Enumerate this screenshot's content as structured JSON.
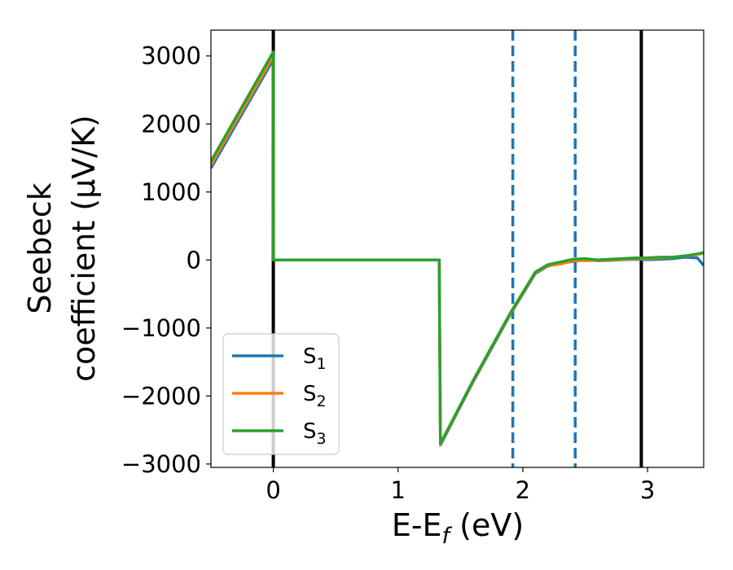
{
  "chart_data": {
    "type": "line",
    "xlabel": "E-E_f (eV)",
    "ylabel_line1": "Seebeck",
    "ylabel_line2": "coefficient  (μV/K)",
    "xlim": [
      -0.5,
      3.45
    ],
    "ylim": [
      -3050,
      3380
    ],
    "xticks": [
      {
        "value": 0,
        "label": "0"
      },
      {
        "value": 1,
        "label": "1"
      },
      {
        "value": 2,
        "label": "2"
      },
      {
        "value": 3,
        "label": "3"
      }
    ],
    "yticks": [
      {
        "value": 3000,
        "label": "3000"
      },
      {
        "value": 2000,
        "label": "2000"
      },
      {
        "value": 1000,
        "label": "1000"
      },
      {
        "value": 0,
        "label": "0"
      },
      {
        "value": -1000,
        "label": "−1000"
      },
      {
        "value": -2000,
        "label": "−2000"
      },
      {
        "value": -3000,
        "label": "−3000"
      }
    ],
    "vlines": [
      {
        "x": 0,
        "style": "solid",
        "color": "#000000"
      },
      {
        "x": 2.95,
        "style": "solid",
        "color": "#000000"
      },
      {
        "x": 1.92,
        "style": "dashed",
        "color": "#1f77b4"
      },
      {
        "x": 2.42,
        "style": "dashed",
        "color": "#1f77b4"
      }
    ],
    "legend_position": "lower-left",
    "series": [
      {
        "name": "S",
        "subscript": "1",
        "color": "#1f77b4",
        "x": [
          -0.5,
          0,
          0.001,
          1.33,
          1.335,
          1.34,
          1.6,
          1.9,
          2.1,
          2.2,
          2.3,
          2.4,
          2.5,
          2.6,
          2.7,
          2.8,
          2.9,
          3.0,
          3.1,
          3.2,
          3.3,
          3.4,
          3.45
        ],
        "y": [
          1350,
          2950,
          0,
          0,
          -1500,
          -2720,
          -1800,
          -800,
          -200,
          -90,
          -50,
          -20,
          0,
          -10,
          -5,
          5,
          10,
          5,
          10,
          20,
          40,
          30,
          -80
        ]
      },
      {
        "name": "S",
        "subscript": "2",
        "color": "#ff7f0e",
        "x": [
          -0.5,
          0,
          0.001,
          1.33,
          1.335,
          1.34,
          1.6,
          1.9,
          2.1,
          2.2,
          2.3,
          2.4,
          2.5,
          2.6,
          2.7,
          2.8,
          2.9,
          3.0,
          3.1,
          3.2,
          3.3,
          3.4,
          3.45
        ],
        "y": [
          1400,
          3000,
          0,
          0,
          -1500,
          -2710,
          -1790,
          -790,
          -190,
          -80,
          -60,
          -10,
          -10,
          -5,
          0,
          10,
          20,
          20,
          30,
          40,
          60,
          80,
          100
        ]
      },
      {
        "name": "S",
        "subscript": "3",
        "color": "#2ca02c",
        "x": [
          -0.5,
          0,
          0.001,
          1.33,
          1.335,
          1.34,
          1.6,
          1.9,
          2.1,
          2.2,
          2.3,
          2.4,
          2.5,
          2.6,
          2.7,
          2.8,
          2.9,
          3.0,
          3.1,
          3.2,
          3.3,
          3.4,
          3.45
        ],
        "y": [
          1450,
          3060,
          0,
          0,
          -1500,
          -2700,
          -1780,
          -780,
          -180,
          -70,
          -30,
          10,
          20,
          0,
          10,
          20,
          30,
          30,
          40,
          40,
          60,
          90,
          110
        ]
      }
    ]
  }
}
